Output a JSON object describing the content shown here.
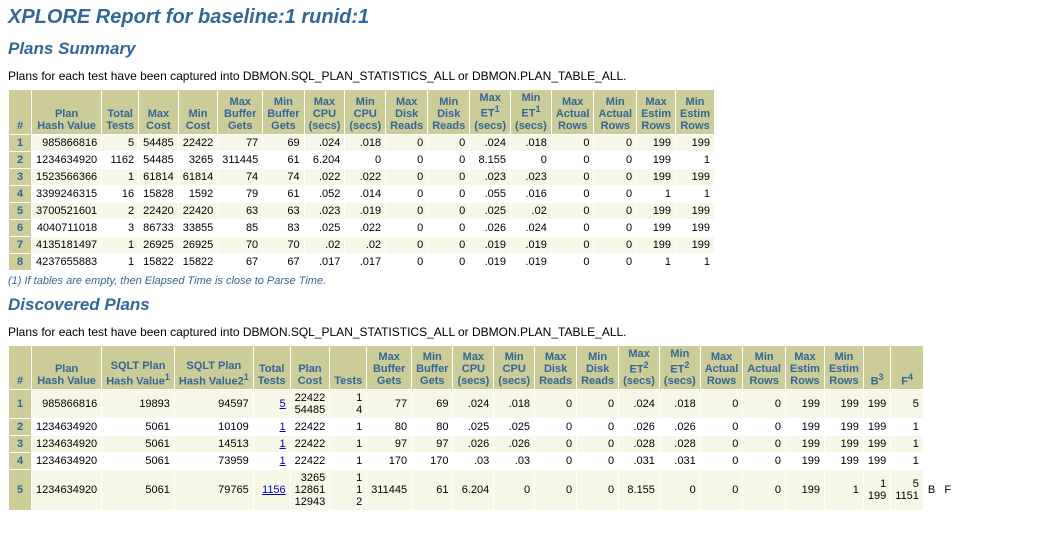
{
  "title": "XPLORE Report for baseline:1 runid:1",
  "sections": {
    "plans_summary": {
      "heading": "Plans Summary",
      "subtext": "Plans for each test have been captured into DBMON.SQL_PLAN_STATISTICS_ALL or DBMON.PLAN_TABLE_ALL.",
      "footnote": "(1) If tables are empty, then Elapsed Time is close to Parse Time.",
      "columns": [
        "#",
        "Plan\nHash Value",
        "Total\nTests",
        "Max\nCost",
        "Min\nCost",
        "Max\nBuffer\nGets",
        "Min\nBuffer\nGets",
        "Max\nCPU\n(secs)",
        "Min\nCPU\n(secs)",
        "Max\nDisk\nReads",
        "Min\nDisk\nReads",
        "Max\nET¹\n(secs)",
        "Min\nET¹\n(secs)",
        "Max\nActual\nRows",
        "Min\nActual\nRows",
        "Max\nEstim\nRows",
        "Min\nEstim\nRows"
      ],
      "rows": [
        [
          "1",
          "985866816",
          "5",
          "54485",
          "22422",
          "77",
          "69",
          ".024",
          ".018",
          "0",
          "0",
          ".024",
          ".018",
          "0",
          "0",
          "199",
          "199"
        ],
        [
          "2",
          "1234634920",
          "1162",
          "54485",
          "3265",
          "311445",
          "61",
          "6.204",
          "0",
          "0",
          "0",
          "8.155",
          "0",
          "0",
          "0",
          "199",
          "1"
        ],
        [
          "3",
          "1523566366",
          "1",
          "61814",
          "61814",
          "74",
          "74",
          ".022",
          ".022",
          "0",
          "0",
          ".023",
          ".023",
          "0",
          "0",
          "199",
          "199"
        ],
        [
          "4",
          "3399246315",
          "16",
          "15828",
          "1592",
          "79",
          "61",
          ".052",
          ".014",
          "0",
          "0",
          ".055",
          ".016",
          "0",
          "0",
          "1",
          "1"
        ],
        [
          "5",
          "3700521601",
          "2",
          "22420",
          "22420",
          "63",
          "63",
          ".023",
          ".019",
          "0",
          "0",
          ".025",
          ".02",
          "0",
          "0",
          "199",
          "199"
        ],
        [
          "6",
          "4040711018",
          "3",
          "86733",
          "33855",
          "85",
          "83",
          ".025",
          ".022",
          "0",
          "0",
          ".026",
          ".024",
          "0",
          "0",
          "199",
          "199"
        ],
        [
          "7",
          "4135181497",
          "1",
          "26925",
          "26925",
          "70",
          "70",
          ".02",
          ".02",
          "0",
          "0",
          ".019",
          ".019",
          "0",
          "0",
          "199",
          "199"
        ],
        [
          "8",
          "4237655883",
          "1",
          "15822",
          "15822",
          "67",
          "67",
          ".017",
          ".017",
          "0",
          "0",
          ".019",
          ".019",
          "0",
          "0",
          "1",
          "1"
        ]
      ]
    },
    "discovered_plans": {
      "heading": "Discovered Plans",
      "subtext": "Plans for each test have been captured into DBMON.SQL_PLAN_STATISTICS_ALL or DBMON.PLAN_TABLE_ALL.",
      "columns": [
        "#",
        "Plan\nHash Value",
        "SQLT Plan\nHash Value¹",
        "SQLT Plan\nHash Value2¹",
        "Total\nTests",
        "Plan\nCost",
        "Tests",
        "Max\nBuffer\nGets",
        "Min\nBuffer\nGets",
        "Max\nCPU\n(secs)",
        "Min\nCPU\n(secs)",
        "Max\nDisk\nReads",
        "Min\nDisk\nReads",
        "Max\nET²\n(secs)",
        "Min\nET²\n(secs)",
        "Max\nActual\nRows",
        "Min\nActual\nRows",
        "Max\nEstim\nRows",
        "Min\nEstim\nRows",
        "B³",
        "F⁴"
      ],
      "rows": [
        {
          "idx": "1",
          "cells": [
            "985866816",
            "19893",
            "94597",
            "5",
            "22422\n54485",
            "1\n4",
            "77",
            "69",
            ".024",
            ".018",
            "0",
            "0",
            ".024",
            ".018",
            "0",
            "0",
            "199",
            "199",
            "199",
            "5"
          ],
          "tt_link": true,
          "extra": ""
        },
        {
          "idx": "2",
          "cells": [
            "1234634920",
            "5061",
            "10109",
            "1",
            "22422",
            "1",
            "80",
            "80",
            ".025",
            ".025",
            "0",
            "0",
            ".026",
            ".026",
            "0",
            "0",
            "199",
            "199",
            "199",
            "1"
          ],
          "tt_link": true,
          "extra": ""
        },
        {
          "idx": "3",
          "cells": [
            "1234634920",
            "5061",
            "14513",
            "1",
            "22422",
            "1",
            "97",
            "97",
            ".026",
            ".026",
            "0",
            "0",
            ".028",
            ".028",
            "0",
            "0",
            "199",
            "199",
            "199",
            "1"
          ],
          "tt_link": true,
          "extra": ""
        },
        {
          "idx": "4",
          "cells": [
            "1234634920",
            "5061",
            "73959",
            "1",
            "22422",
            "1",
            "170",
            "170",
            ".03",
            ".03",
            "0",
            "0",
            ".031",
            ".031",
            "0",
            "0",
            "199",
            "199",
            "199",
            "1"
          ],
          "tt_link": true,
          "extra": ""
        },
        {
          "idx": "5",
          "cells": [
            "1234634920",
            "5061",
            "79765",
            "1156",
            "3265\n12861\n12943",
            "1\n1\n2",
            "311445",
            "61",
            "6.204",
            "0",
            "0",
            "0",
            "8.155",
            "0",
            "0",
            "0",
            "199",
            "1",
            "1\n199",
            "5\n1151"
          ],
          "tt_link": true,
          "extra": "B   F"
        }
      ]
    }
  }
}
